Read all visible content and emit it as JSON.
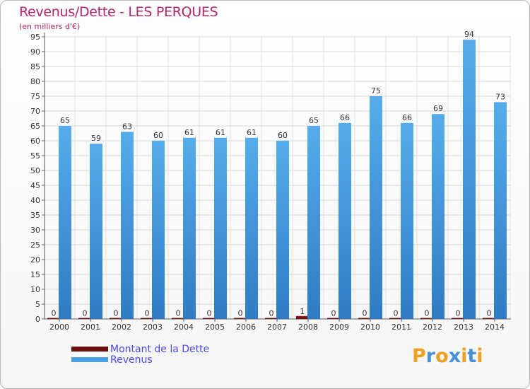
{
  "page": {
    "title": "Revenus/Dette - LES PERQUES",
    "subtitle": "(en milliers d'€)"
  },
  "chart_data": {
    "type": "bar",
    "title": "Revenus/Dette - LES PERQUES",
    "subtitle": "(en milliers d'€)",
    "categories": [
      "2000",
      "2001",
      "2002",
      "2003",
      "2004",
      "2005",
      "2006",
      "2007",
      "2008",
      "2009",
      "2010",
      "2011",
      "2012",
      "2013",
      "2014"
    ],
    "series": [
      {
        "name": "Montant de la Dette",
        "color": "#7a1010",
        "values": [
          0,
          0,
          0,
          0,
          0,
          0,
          0,
          0,
          1,
          0,
          0,
          0,
          0,
          0,
          0
        ]
      },
      {
        "name": "Revenus",
        "color": "#4a9fe4",
        "values": [
          65,
          59,
          63,
          60,
          61,
          61,
          61,
          60,
          65,
          66,
          75,
          66,
          69,
          94,
          73
        ]
      }
    ],
    "ylim": [
      0,
      95
    ],
    "yticks": [
      0,
      5,
      10,
      15,
      20,
      25,
      30,
      35,
      40,
      45,
      50,
      55,
      60,
      65,
      70,
      75,
      80,
      85,
      90,
      95
    ],
    "grid": true
  },
  "legend": {
    "items": [
      {
        "label": "Montant de la Dette",
        "color": "#6b0f0f"
      },
      {
        "label": "Revenus",
        "color": "#4a9fe4"
      }
    ]
  },
  "logo": {
    "letters": [
      "P",
      "r",
      "o",
      "x",
      "i",
      "t",
      "i"
    ],
    "colors": [
      "#f0a020",
      "#4a90d9",
      "#f0a020",
      "#4a90d9",
      "#f0a020",
      "#4a90d9",
      "#f0a020"
    ]
  }
}
